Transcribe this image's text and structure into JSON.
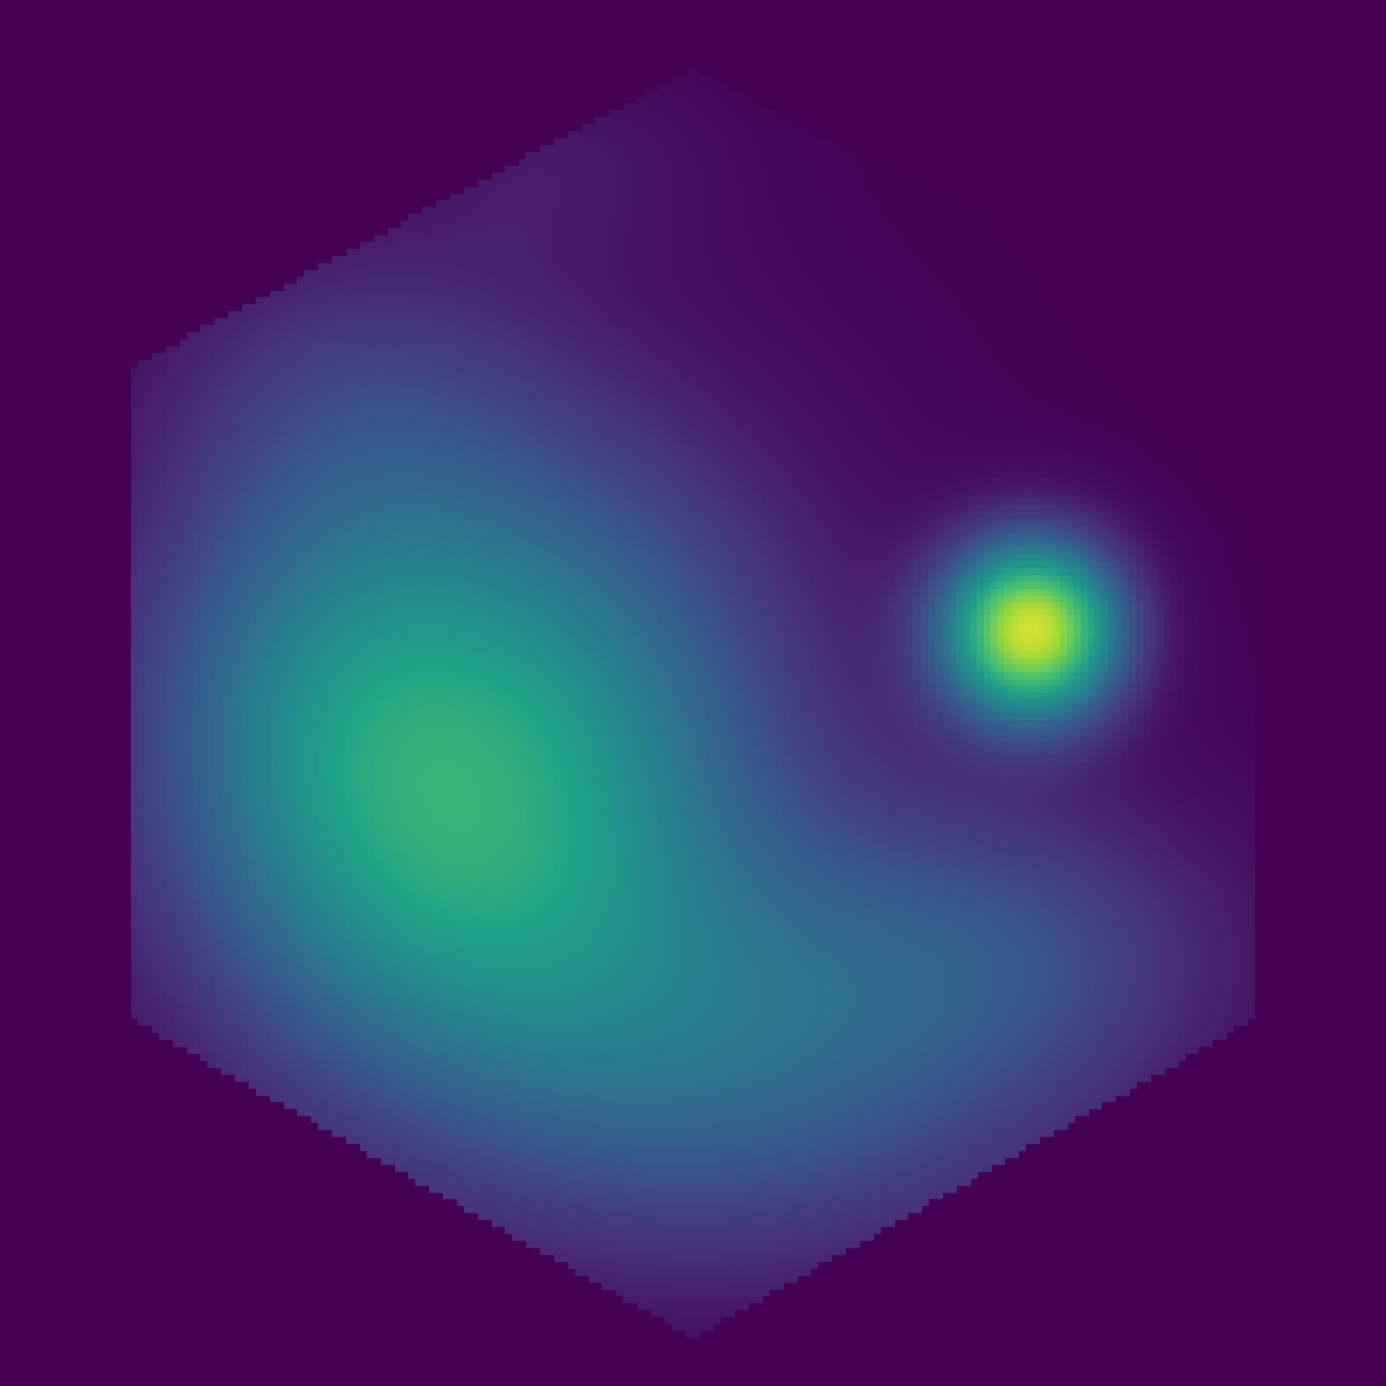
{
  "chart_data": {
    "type": "heatmap",
    "title": "",
    "xlabel": "",
    "ylabel": "",
    "grid": false,
    "legend": "none",
    "colormap": "viridis",
    "colormap_stops": [
      "#440154",
      "#46327e",
      "#365c8d",
      "#277f8e",
      "#1fa187",
      "#4ac16d",
      "#a0da39",
      "#fde725"
    ],
    "background_color": "#440154",
    "region": "hexagon",
    "x_range": [
      0,
      1
    ],
    "y_range": [
      0,
      1
    ],
    "value_range": [
      0,
      1
    ],
    "blobs": [
      {
        "x": 0.37,
        "y": 0.55,
        "sx": 0.14,
        "sy": 0.16,
        "value": 0.5
      },
      {
        "x": 0.22,
        "y": 0.5,
        "sx": 0.1,
        "sy": 0.12,
        "value": 0.2
      },
      {
        "x": 0.3,
        "y": 0.66,
        "sx": 0.12,
        "sy": 0.1,
        "value": 0.12
      },
      {
        "x": 0.55,
        "y": 0.78,
        "sx": 0.16,
        "sy": 0.1,
        "value": 0.24
      },
      {
        "x": 0.72,
        "y": 0.68,
        "sx": 0.12,
        "sy": 0.08,
        "value": 0.18
      },
      {
        "x": 0.25,
        "y": 0.28,
        "sx": 0.1,
        "sy": 0.08,
        "value": 0.1
      },
      {
        "x": 0.4,
        "y": 0.12,
        "sx": 0.08,
        "sy": 0.05,
        "value": 0.06
      },
      {
        "x": 0.745,
        "y": 0.455,
        "sx": 0.045,
        "sy": 0.045,
        "value": 0.92
      }
    ]
  }
}
